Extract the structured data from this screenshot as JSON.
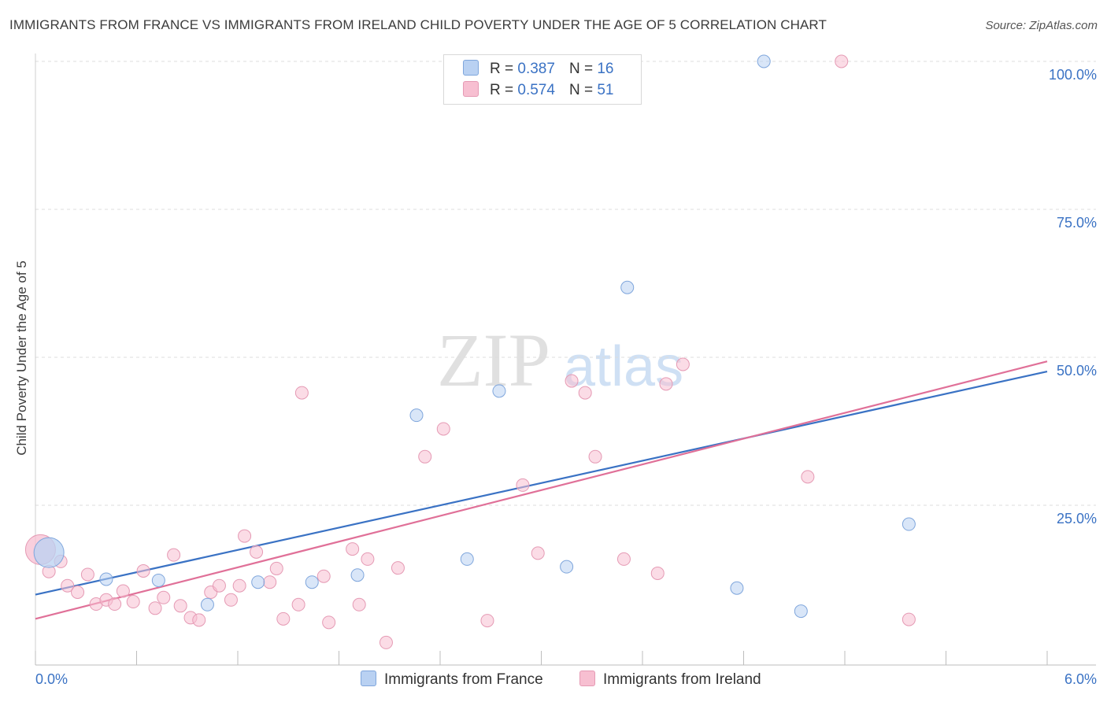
{
  "title": "IMMIGRANTS FROM FRANCE VS IMMIGRANTS FROM IRELAND CHILD POVERTY UNDER THE AGE OF 5 CORRELATION CHART",
  "source": "Source: ZipAtlas.com",
  "watermark": {
    "zip": "ZIP",
    "atlas": "atlas"
  },
  "colors": {
    "france": "#3a72c4",
    "france_fill": "#b9d1f2",
    "ireland": "#e07098",
    "ireland_fill": "#f7bfd1",
    "tick_text": "#3a72c4",
    "grid": "#dcdcdc"
  },
  "legend": {
    "france": {
      "r_label": "R =",
      "r_value": "0.387",
      "n_label": "N =",
      "n_value": "16"
    },
    "ireland": {
      "r_label": "R =",
      "r_value": "0.574",
      "n_label": "N =",
      "n_value": "51"
    }
  },
  "bottom_legend": {
    "france": "Immigrants from France",
    "ireland": "Immigrants from Ireland"
  },
  "chart_data": {
    "type": "scatter",
    "title": "IMMIGRANTS FROM FRANCE VS IMMIGRANTS FROM IRELAND CHILD POVERTY UNDER THE AGE OF 5 CORRELATION CHART",
    "xlabel": "",
    "ylabel": "Child Poverty Under the Age of 5",
    "xlim": [
      0,
      6
    ],
    "ylim": [
      0,
      100
    ],
    "x_tick_labels": [
      "0.0%",
      "6.0%"
    ],
    "y_ticks": [
      25,
      50,
      75,
      100
    ],
    "y_tick_labels": [
      "25.0%",
      "50.0%",
      "75.0%",
      "100.0%"
    ],
    "grid": true,
    "series": [
      {
        "name": "Immigrants from France",
        "points": [
          {
            "x": 0.08,
            "y": 17.0,
            "big": true
          },
          {
            "x": 0.42,
            "y": 12.5
          },
          {
            "x": 0.73,
            "y": 12.3
          },
          {
            "x": 1.02,
            "y": 8.2
          },
          {
            "x": 1.32,
            "y": 12.0
          },
          {
            "x": 1.64,
            "y": 12.0
          },
          {
            "x": 1.91,
            "y": 13.2
          },
          {
            "x": 2.26,
            "y": 40.2
          },
          {
            "x": 2.56,
            "y": 15.9
          },
          {
            "x": 2.75,
            "y": 44.3
          },
          {
            "x": 3.15,
            "y": 14.6
          },
          {
            "x": 3.51,
            "y": 61.8
          },
          {
            "x": 4.16,
            "y": 11.0
          },
          {
            "x": 4.32,
            "y": 100.0
          },
          {
            "x": 4.54,
            "y": 7.1
          },
          {
            "x": 5.18,
            "y": 21.8
          }
        ],
        "trend": {
          "x": [
            0,
            6
          ],
          "y": [
            9.9,
            47.6
          ]
        }
      },
      {
        "name": "Immigrants from Ireland",
        "points": [
          {
            "x": 0.03,
            "y": 17.5,
            "big": true
          },
          {
            "x": 0.08,
            "y": 13.8
          },
          {
            "x": 0.15,
            "y": 15.5
          },
          {
            "x": 0.19,
            "y": 11.4
          },
          {
            "x": 0.25,
            "y": 10.3
          },
          {
            "x": 0.31,
            "y": 13.3
          },
          {
            "x": 0.36,
            "y": 8.3
          },
          {
            "x": 0.42,
            "y": 9.0
          },
          {
            "x": 0.47,
            "y": 8.3
          },
          {
            "x": 0.52,
            "y": 10.5
          },
          {
            "x": 0.58,
            "y": 8.7
          },
          {
            "x": 0.64,
            "y": 13.9
          },
          {
            "x": 0.71,
            "y": 7.6
          },
          {
            "x": 0.76,
            "y": 9.4
          },
          {
            "x": 0.82,
            "y": 16.6
          },
          {
            "x": 0.86,
            "y": 8.0
          },
          {
            "x": 0.92,
            "y": 6.0
          },
          {
            "x": 0.97,
            "y": 5.6
          },
          {
            "x": 1.04,
            "y": 10.3
          },
          {
            "x": 1.09,
            "y": 11.4
          },
          {
            "x": 1.16,
            "y": 9.0
          },
          {
            "x": 1.21,
            "y": 11.4
          },
          {
            "x": 1.24,
            "y": 19.8
          },
          {
            "x": 1.31,
            "y": 17.1
          },
          {
            "x": 1.39,
            "y": 12.0
          },
          {
            "x": 1.43,
            "y": 14.3
          },
          {
            "x": 1.47,
            "y": 5.8
          },
          {
            "x": 1.58,
            "y": 44.0
          },
          {
            "x": 1.56,
            "y": 8.2
          },
          {
            "x": 1.71,
            "y": 13.0
          },
          {
            "x": 1.74,
            "y": 5.2
          },
          {
            "x": 1.88,
            "y": 17.6
          },
          {
            "x": 1.92,
            "y": 8.2
          },
          {
            "x": 1.97,
            "y": 15.9
          },
          {
            "x": 2.08,
            "y": 1.8
          },
          {
            "x": 2.15,
            "y": 14.4
          },
          {
            "x": 2.31,
            "y": 33.2
          },
          {
            "x": 2.42,
            "y": 37.9
          },
          {
            "x": 2.68,
            "y": 5.5
          },
          {
            "x": 2.89,
            "y": 28.4
          },
          {
            "x": 2.98,
            "y": 16.9
          },
          {
            "x": 3.18,
            "y": 46.0
          },
          {
            "x": 3.26,
            "y": 44.0
          },
          {
            "x": 3.32,
            "y": 33.2
          },
          {
            "x": 3.49,
            "y": 15.9
          },
          {
            "x": 3.69,
            "y": 13.5
          },
          {
            "x": 3.74,
            "y": 45.5
          },
          {
            "x": 3.84,
            "y": 48.8
          },
          {
            "x": 4.78,
            "y": 100.0
          },
          {
            "x": 4.58,
            "y": 29.8
          },
          {
            "x": 5.18,
            "y": 5.7
          }
        ],
        "trend": {
          "x": [
            0,
            6
          ],
          "y": [
            5.8,
            49.3
          ]
        }
      }
    ]
  }
}
